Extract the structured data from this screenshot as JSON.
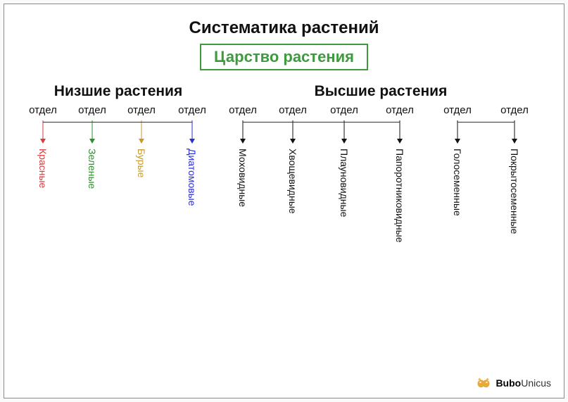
{
  "diagram": {
    "type": "tree",
    "title": "Систематика растений",
    "kingdom": "Царство растения",
    "kingdom_color": "#3f9a3f",
    "title_fontsize": 24,
    "kingdom_fontsize": 22,
    "group_title_fontsize": 21,
    "dept_label_fontsize": 15,
    "vertical_label_fontsize": 14,
    "background_color": "#ffffff",
    "frame_border_color": "#5fa860",
    "line_color": "#333333",
    "groups": [
      {
        "title": "Низшие растения",
        "departments": [
          {
            "label": "отдел",
            "name": "Красные",
            "color": "#d93a3a",
            "width": 70
          },
          {
            "label": "отдел",
            "name": "Зеленые",
            "color": "#2f8f2a",
            "width": 70
          },
          {
            "label": "отдел",
            "name": "Бурые",
            "color": "#c79a2d",
            "width": 70
          },
          {
            "label": "отдел",
            "name": "Диатомовые",
            "color": "#2c2fcf",
            "width": 74
          }
        ]
      },
      {
        "title": "Высшие растения",
        "departments": [
          {
            "label": "отдел",
            "name": "Моховидные",
            "color": "#111111",
            "width": 70
          },
          {
            "label": "отдел",
            "name": "Хвощевидные",
            "color": "#111111",
            "width": 72
          },
          {
            "label": "отдел",
            "name": "Плауновидные",
            "color": "#111111",
            "width": 74
          },
          {
            "label": "отдел",
            "name": "Папоротниковидные",
            "color": "#111111",
            "width": 84
          },
          {
            "label": "отдел",
            "name": "Голосеменные",
            "color": "#111111",
            "width": 80
          },
          {
            "label": "отдел",
            "name": "Покрытосеменные",
            "color": "#111111",
            "width": 82
          }
        ]
      }
    ],
    "group_hlines": [
      {
        "group": 0,
        "from_col": 0,
        "to_col": 3
      },
      {
        "group": 1,
        "from_col": 0,
        "to_col": 3
      },
      {
        "group": 1,
        "from_col": 4,
        "to_col": 5
      }
    ]
  },
  "footer": {
    "brand_bold": "Bubo",
    "brand_light": "Unicus",
    "logo_color": "#e6a93a"
  }
}
